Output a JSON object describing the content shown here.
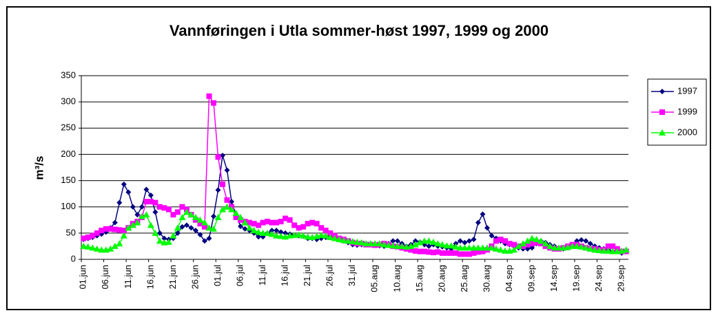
{
  "chart_data": {
    "type": "line",
    "title": "Vannføringen i Utla sommer-høst 1997, 1999 og 2000",
    "y_label": "m³/s",
    "categories": [
      "01.jun",
      null,
      null,
      null,
      null,
      "06.jun",
      null,
      null,
      null,
      null,
      "11.jun",
      null,
      null,
      null,
      null,
      "16.jun",
      null,
      null,
      null,
      null,
      "21.jun",
      null,
      null,
      null,
      null,
      "26.jun",
      null,
      null,
      null,
      null,
      "01.jul",
      null,
      null,
      null,
      null,
      "06.jul",
      null,
      null,
      null,
      null,
      "11.jul",
      null,
      null,
      null,
      null,
      "16.jul",
      null,
      null,
      null,
      null,
      "21.jul",
      null,
      null,
      null,
      null,
      "26.jul",
      null,
      null,
      null,
      null,
      "31.jul",
      null,
      null,
      null,
      null,
      "05.aug",
      null,
      null,
      null,
      null,
      "10.aug",
      null,
      null,
      null,
      null,
      "15.aug",
      null,
      null,
      null,
      null,
      "20.aug",
      null,
      null,
      null,
      null,
      "25.aug",
      null,
      null,
      null,
      null,
      "30.aug",
      null,
      null,
      null,
      null,
      "04.sep",
      null,
      null,
      null,
      null,
      "09.sep",
      null,
      null,
      null,
      null,
      "14.sep",
      null,
      null,
      null,
      null,
      "19.sep",
      null,
      null,
      null,
      null,
      "24.sep",
      null,
      null,
      null,
      null,
      "29.sep",
      null
    ],
    "series": [
      {
        "name": "1997",
        "color": "#000080",
        "marker": "diamond",
        "values": [
          38,
          40,
          42,
          45,
          48,
          52,
          60,
          70,
          108,
          143,
          128,
          100,
          85,
          100,
          133,
          122,
          90,
          50,
          40,
          38,
          40,
          50,
          62,
          65,
          60,
          55,
          47,
          35,
          40,
          82,
          132,
          198,
          170,
          110,
          85,
          63,
          58,
          55,
          50,
          43,
          43,
          50,
          55,
          55,
          52,
          50,
          48,
          46,
          45,
          44,
          40,
          40,
          38,
          40,
          42,
          45,
          42,
          40,
          35,
          32,
          28,
          27,
          28,
          30,
          28,
          27,
          26,
          25,
          30,
          35,
          35,
          30,
          25,
          28,
          35,
          33,
          28,
          25,
          28,
          25,
          24,
          22,
          20,
          30,
          35,
          32,
          35,
          38,
          70,
          86,
          60,
          45,
          40,
          35,
          30,
          28,
          25,
          22,
          20,
          20,
          22,
          30,
          35,
          32,
          28,
          25,
          22,
          20,
          22,
          25,
          35,
          37,
          35,
          30,
          25,
          22,
          20,
          18,
          15,
          15,
          12,
          15
        ]
      },
      {
        "name": "1999",
        "color": "#ff00ff",
        "marker": "square",
        "values": [
          40,
          42,
          45,
          50,
          55,
          58,
          58,
          57,
          56,
          55,
          60,
          68,
          72,
          80,
          110,
          110,
          108,
          100,
          98,
          95,
          85,
          90,
          100,
          95,
          85,
          75,
          68,
          62,
          311,
          298,
          195,
          143,
          113,
          100,
          80,
          75,
          72,
          70,
          68,
          65,
          70,
          72,
          70,
          70,
          72,
          78,
          75,
          65,
          60,
          62,
          68,
          70,
          68,
          60,
          55,
          50,
          45,
          40,
          38,
          35,
          32,
          30,
          30,
          28,
          28,
          27,
          28,
          30,
          28,
          25,
          24,
          22,
          20,
          18,
          16,
          15,
          15,
          14,
          13,
          14,
          12,
          12,
          12,
          12,
          10,
          10,
          10,
          12,
          14,
          15,
          18,
          25,
          35,
          38,
          35,
          30,
          28,
          25,
          25,
          28,
          30,
          32,
          30,
          25,
          22,
          20,
          20,
          22,
          25,
          28,
          28,
          25,
          22,
          20,
          20,
          18,
          18,
          25,
          25,
          20,
          15,
          15
        ]
      },
      {
        "name": "2000",
        "color": "#00ff00",
        "marker": "triangle",
        "values": [
          25,
          24,
          22,
          20,
          18,
          18,
          20,
          25,
          30,
          45,
          60,
          65,
          70,
          82,
          85,
          65,
          50,
          35,
          32,
          33,
          45,
          60,
          80,
          90,
          85,
          80,
          75,
          70,
          60,
          58,
          80,
          95,
          100,
          95,
          88,
          80,
          70,
          60,
          55,
          52,
          50,
          50,
          48,
          45,
          44,
          43,
          45,
          46,
          47,
          45,
          43,
          42,
          44,
          46,
          45,
          42,
          40,
          38,
          36,
          35,
          34,
          33,
          32,
          30,
          30,
          30,
          30,
          28,
          27,
          26,
          25,
          25,
          24,
          25,
          28,
          32,
          35,
          35,
          33,
          30,
          28,
          26,
          26,
          24,
          22,
          22,
          22,
          22,
          22,
          22,
          22,
          22,
          20,
          18,
          16,
          16,
          18,
          25,
          30,
          35,
          40,
          38,
          35,
          30,
          25,
          22,
          22,
          22,
          23,
          25,
          25,
          24,
          22,
          20,
          18,
          17,
          16,
          16,
          15,
          15,
          16,
          18
        ]
      }
    ],
    "ylim": [
      0,
      350
    ],
    "yticks": [
      0,
      50,
      100,
      150,
      200,
      250,
      300,
      350
    ],
    "grid": true,
    "legend": "right"
  }
}
